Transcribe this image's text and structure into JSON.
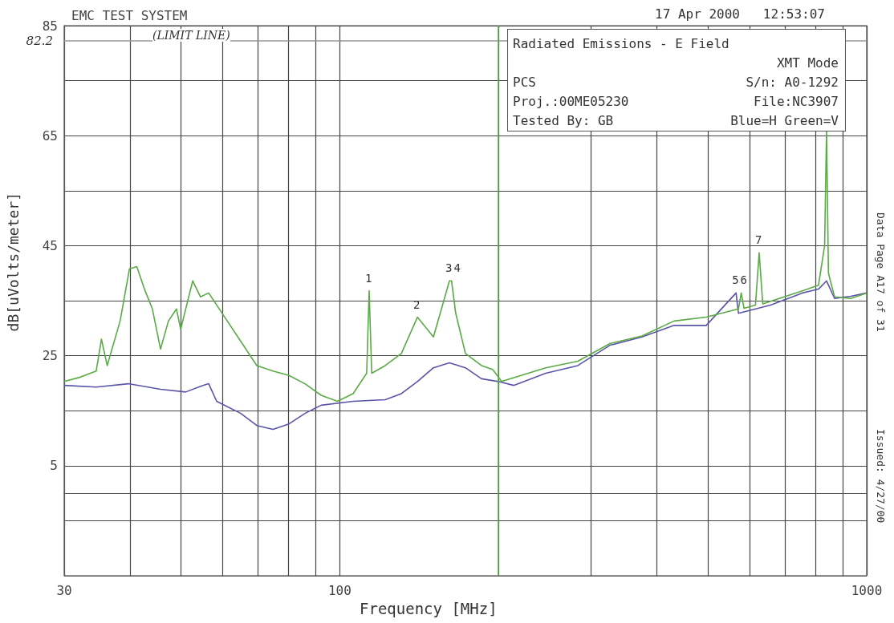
{
  "chart_data": {
    "type": "line",
    "title": "EMC TEST SYSTEM",
    "xlabel": "Frequency [MHz]",
    "ylabel": "dB[uVolts/meter]",
    "log": "x",
    "grid": true,
    "marker": "none",
    "line_style": "solid",
    "xlim": [
      30,
      1000
    ],
    "ylim": [
      -15,
      85
    ],
    "xticks": [
      30,
      {
        "value": 40,
        "label": null
      },
      {
        "value": 50,
        "label": null
      },
      {
        "value": 60,
        "label": null
      },
      {
        "value": 70,
        "label": null
      },
      {
        "value": 80,
        "label": null
      },
      {
        "value": 90,
        "label": null
      },
      100,
      {
        "value": 200,
        "label": null
      },
      {
        "value": 300,
        "label": null
      },
      {
        "value": 400,
        "label": null
      },
      {
        "value": 500,
        "label": null
      },
      {
        "value": 600,
        "label": null
      },
      {
        "value": 700,
        "label": null
      },
      {
        "value": 800,
        "label": null
      },
      {
        "value": 900,
        "label": null
      },
      1000
    ],
    "yticks": [
      {
        "value": -15,
        "label": null
      },
      {
        "value": -5,
        "label": null
      },
      5,
      {
        "value": 15,
        "label": null
      },
      25,
      {
        "value": 35,
        "label": null
      },
      45,
      {
        "value": 55,
        "label": null
      },
      65,
      {
        "value": 75,
        "label": null
      },
      85
    ],
    "series": [
      {
        "color": "#5a55a8",
        "x": [
          30,
          34.5,
          39.7,
          45.7,
          51,
          55,
          56.4,
          58.4,
          64.9,
          69.6,
          74.7,
          80.1,
          85.9,
          92.2,
          106,
          122,
          130.9,
          140.4,
          150.6,
          161.5,
          173.2,
          185.8,
          200,
          213.8,
          246,
          283,
          325.6,
          374.6,
          431,
          496,
          565,
          571,
          657,
          755,
          810,
          839,
          869,
          933,
          1000
        ],
        "values": [
          19.6,
          19.3,
          19.9,
          18.9,
          18.4,
          19.6,
          19.9,
          16.7,
          14.5,
          12.3,
          11.6,
          12.6,
          14.5,
          16.0,
          16.7,
          17.0,
          18.1,
          20.3,
          22.8,
          23.7,
          22.8,
          20.8,
          20.3,
          19.6,
          21.8,
          23.2,
          26.9,
          28.4,
          30.5,
          30.5,
          36.4,
          32.7,
          34.2,
          36.4,
          37.1,
          38.6,
          35.4,
          35.8,
          36.4
        ]
      },
      {
        "color": "#5aaa46",
        "x": [
          30,
          32.2,
          34.5,
          35.3,
          36.2,
          38.3,
          39.9,
          41.2,
          42.6,
          44.1,
          45.7,
          47.3,
          49,
          49.9,
          52.6,
          54.4,
          56.4,
          60.5,
          64.9,
          69.6,
          74.7,
          80.1,
          85.9,
          92.2,
          99,
          106,
          112.5,
          113.7,
          115,
          122,
          130.9,
          140.4,
          150.6,
          161.5,
          163,
          166,
          173.2,
          185.8,
          195,
          200,
          202.8,
          246,
          283,
          325.6,
          374.6,
          431,
          496,
          571,
          578,
          585,
          615,
          625,
          635,
          657,
          755,
          810,
          832,
          839,
          846,
          869,
          933,
          1000
        ],
        "values": [
          20.3,
          21.1,
          22.2,
          28,
          23.2,
          31.3,
          40.8,
          41.2,
          37.1,
          33.5,
          26.2,
          31.3,
          33.5,
          29.8,
          38.6,
          35.7,
          36.4,
          32.0,
          27.6,
          23.2,
          22.2,
          21.4,
          19.9,
          17.8,
          16.7,
          18.1,
          21.8,
          36.8,
          21.8,
          23.2,
          25.4,
          32.0,
          28.4,
          38.6,
          38.6,
          32.7,
          25.4,
          23.2,
          22.5,
          21.1,
          20.3,
          22.8,
          24.0,
          27.2,
          28.6,
          31.3,
          32.0,
          33.5,
          36.4,
          33.6,
          34.2,
          43.7,
          34.4,
          34.9,
          36.8,
          37.8,
          45,
          66,
          40,
          35.7,
          35.4,
          36.4
        ]
      }
    ],
    "ref_lines": [
      {
        "axis": "y",
        "value": 82.2,
        "label": "82.2",
        "color": "#999999"
      },
      {
        "axis": "x",
        "value": 200,
        "color": "#5aaa46"
      }
    ],
    "annotations": [
      "17 Apr 2000   12:53:07",
      "Radiated Emissions - E Field",
      "XMT Mode",
      "PCS",
      "S/n: A0-1292",
      "Proj.:00ME05230",
      "File:NC3907",
      "Tested By: GB",
      "Blue=H Green=V",
      "(LIMIT LINE)",
      "Data Page A17 of 31",
      "Issued: 4/27/00",
      {
        "text": "1",
        "x": 113.7,
        "y": 36.8
      },
      {
        "text": "2",
        "x": 140.4,
        "y": 32.0
      },
      {
        "text": "3",
        "x": 161.5,
        "y": 38.6
      },
      {
        "text": "4",
        "x": 163,
        "y": 38.6
      },
      {
        "text": "5",
        "x": 565,
        "y": 36.4
      },
      {
        "text": "6",
        "x": 578,
        "y": 36.4
      },
      {
        "text": "7",
        "x": 625,
        "y": 43.7
      }
    ]
  }
}
